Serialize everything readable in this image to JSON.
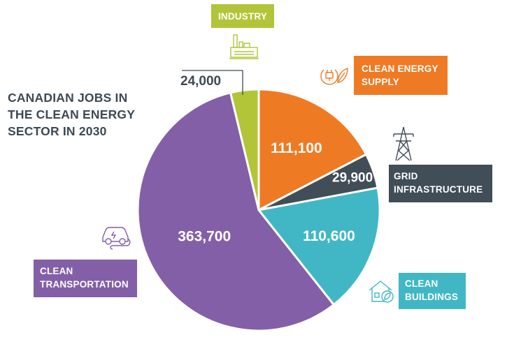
{
  "chart_data": {
    "type": "pie",
    "title": [
      "CANADIAN JOBS IN",
      "THE CLEAN ENERGY",
      "SECTOR IN 2030"
    ],
    "start_angle_deg": 0,
    "direction": "clockwise",
    "slices": [
      {
        "label": [
          "CLEAN ENERGY",
          "SUPPLY"
        ],
        "value": 111100,
        "display": "111,100",
        "color": "#ef7a24"
      },
      {
        "label": [
          "GRID",
          "INFRASTRUCTURE"
        ],
        "value": 29900,
        "display": "29,900",
        "color": "#414d57"
      },
      {
        "label": [
          "CLEAN",
          "BUILDINGS"
        ],
        "value": 110600,
        "display": "110,600",
        "color": "#41b7c5"
      },
      {
        "label": [
          "CLEAN",
          "TRANSPORTATION"
        ],
        "value": 363700,
        "display": "363,700",
        "color": "#835fa8"
      },
      {
        "label": [
          "INDUSTRY"
        ],
        "value": 24000,
        "display": "24,000",
        "color": "#b2c538"
      }
    ]
  },
  "icons": {
    "industry": "factory-icon",
    "supply": "plug-leaf-icon",
    "grid": "transmission-tower-icon",
    "buildings": "house-leaf-icon",
    "transportation": "electric-car-icon"
  }
}
